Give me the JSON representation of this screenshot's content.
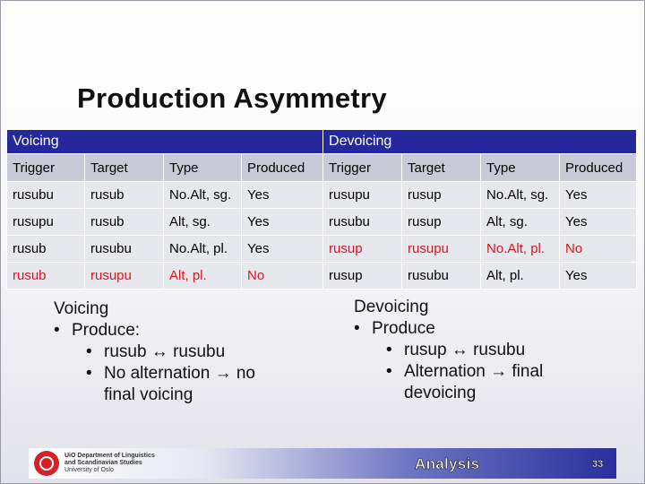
{
  "slide": {
    "title": "Production Asymmetry",
    "footer_label": "Analysis",
    "page_number": "33",
    "logo": {
      "line1": "UiO Department of Linguistics",
      "line2": "and Scandinavian Studies",
      "line3": "University of Oslo"
    }
  },
  "table": {
    "groups": [
      "Voicing",
      "Devoicing"
    ],
    "columns": [
      "Trigger",
      "Target",
      "Type",
      "Produced",
      "Trigger",
      "Target",
      "Type",
      "Produced"
    ],
    "rows": [
      [
        "rusubu",
        "rusub",
        "No.Alt, sg.",
        "Yes",
        "rusupu",
        "rusup",
        "No.Alt, sg.",
        "Yes"
      ],
      [
        "rusupu",
        "rusub",
        "Alt, sg.",
        "Yes",
        "rusubu",
        "rusup",
        "Alt, sg.",
        "Yes"
      ],
      [
        "rusub",
        "rusubu",
        "No.Alt, pl.",
        "Yes",
        "rusup",
        "rusupu",
        "No.Alt, pl.",
        "No"
      ],
      [
        "rusub",
        "rusupu",
        "Alt, pl.",
        "No",
        "rusup",
        "rusubu",
        "Alt, pl.",
        "Yes"
      ]
    ],
    "highlight_color": "#e0121a"
  },
  "notes": {
    "voicing": {
      "heading": "Voicing",
      "produce": "Produce:",
      "pair": "rusub ↔ rusubu",
      "alt": "No alternation → no final voicing"
    },
    "devoicing": {
      "heading": "Devoicing",
      "produce": "Produce",
      "pair": "rusup ↔ rusubu",
      "alt": "Alternation → final devoicing"
    }
  }
}
